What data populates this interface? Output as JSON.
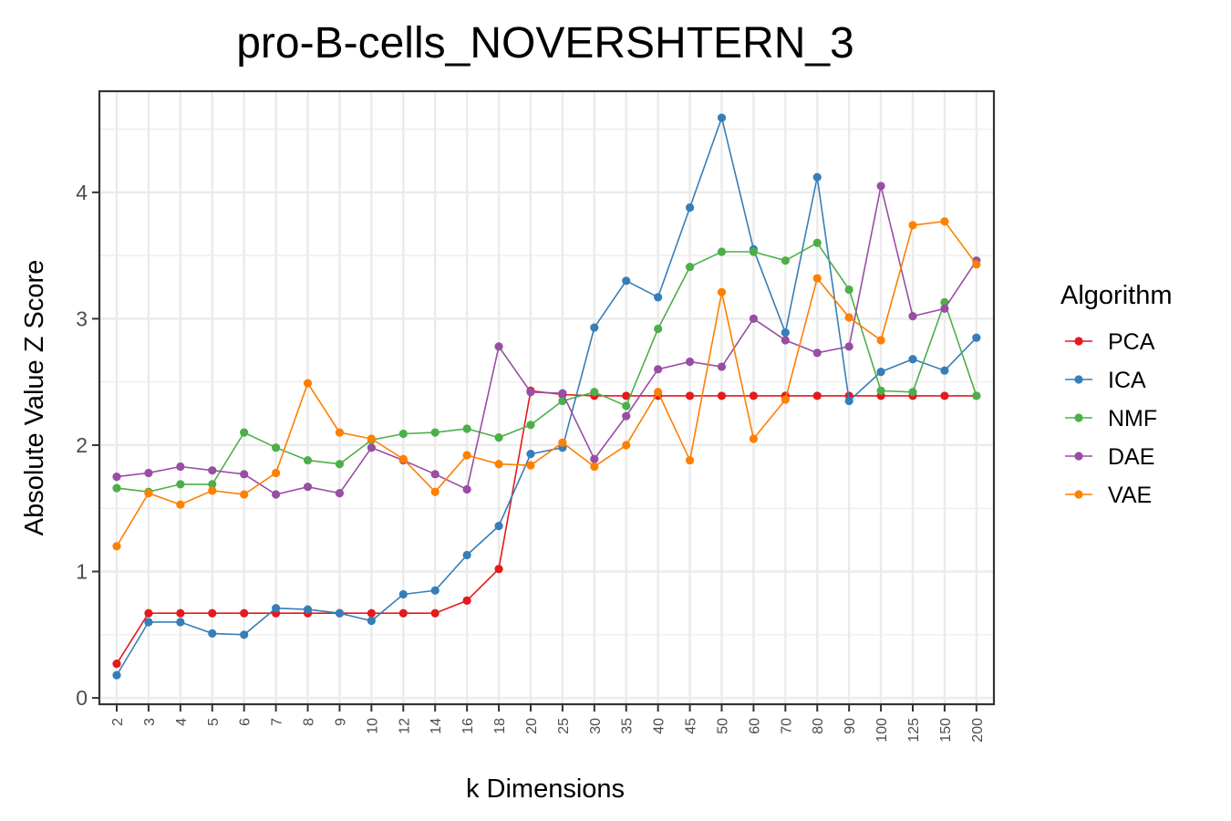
{
  "chart_data": {
    "type": "line",
    "title": "pro-B-cells_NOVERSHTERN_3",
    "xlabel": "k Dimensions",
    "ylabel": "Absolute Value Z Score",
    "categories": [
      "2",
      "3",
      "4",
      "5",
      "6",
      "7",
      "8",
      "9",
      "10",
      "12",
      "14",
      "16",
      "18",
      "20",
      "25",
      "30",
      "35",
      "40",
      "45",
      "50",
      "60",
      "70",
      "80",
      "90",
      "100",
      "125",
      "150",
      "200"
    ],
    "yticks": [
      "0",
      "1",
      "2",
      "3",
      "4"
    ],
    "ylim": [
      -0.05,
      4.8
    ],
    "grid": true,
    "legend": {
      "title": "Algorithm",
      "position": "right"
    },
    "series": [
      {
        "name": "PCA",
        "color": "#e41a1c",
        "values": [
          0.27,
          0.67,
          0.67,
          0.67,
          0.67,
          0.67,
          0.67,
          0.67,
          0.67,
          0.67,
          0.67,
          0.77,
          1.02,
          2.43,
          2.4,
          2.39,
          2.39,
          2.39,
          2.39,
          2.39,
          2.39,
          2.39,
          2.39,
          2.39,
          2.39,
          2.39,
          2.39,
          2.39
        ]
      },
      {
        "name": "ICA",
        "color": "#377eb8",
        "values": [
          0.18,
          0.6,
          0.6,
          0.51,
          0.5,
          0.71,
          0.7,
          0.67,
          0.61,
          0.82,
          0.85,
          1.13,
          1.36,
          1.93,
          1.98,
          2.93,
          3.3,
          3.17,
          3.88,
          4.59,
          3.55,
          2.89,
          4.12,
          2.35,
          2.58,
          2.68,
          2.59,
          2.85
        ]
      },
      {
        "name": "NMF",
        "color": "#4daf4a",
        "values": [
          1.66,
          1.63,
          1.69,
          1.69,
          2.1,
          1.98,
          1.88,
          1.85,
          2.04,
          2.09,
          2.1,
          2.13,
          2.06,
          2.16,
          2.35,
          2.42,
          2.31,
          2.92,
          3.41,
          3.53,
          3.53,
          3.46,
          3.6,
          3.23,
          2.43,
          2.42,
          3.13,
          2.39
        ]
      },
      {
        "name": "DAE",
        "color": "#984ea3",
        "values": [
          1.75,
          1.78,
          1.83,
          1.8,
          1.77,
          1.61,
          1.67,
          1.62,
          1.98,
          1.88,
          1.77,
          1.65,
          2.78,
          2.42,
          2.41,
          1.89,
          2.23,
          2.6,
          2.66,
          2.62,
          3.0,
          2.83,
          2.73,
          2.78,
          4.05,
          3.02,
          3.08,
          3.46
        ]
      },
      {
        "name": "VAE",
        "color": "#ff7f00",
        "values": [
          1.2,
          1.62,
          1.53,
          1.64,
          1.61,
          1.78,
          2.49,
          2.1,
          2.05,
          1.89,
          1.63,
          1.92,
          1.85,
          1.84,
          2.02,
          1.83,
          2.0,
          2.42,
          1.88,
          3.21,
          2.05,
          2.36,
          3.32,
          3.01,
          2.83,
          3.74,
          3.77,
          3.43
        ]
      }
    ]
  }
}
